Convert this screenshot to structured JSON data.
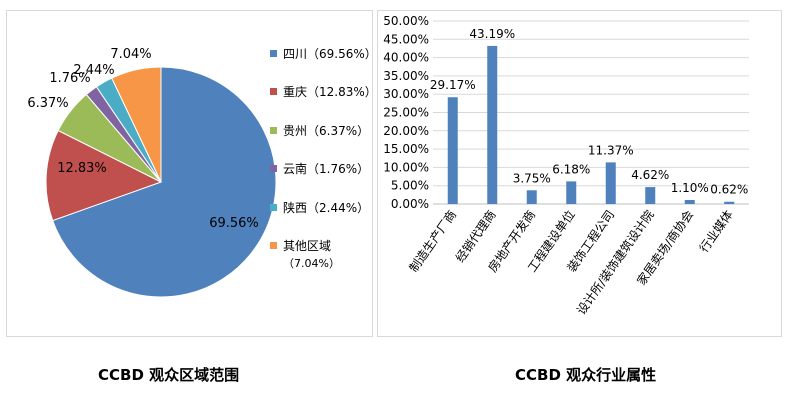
{
  "captions": {
    "left": "CCBD 观众区域范围",
    "right": "CCBD 观众行业属性"
  },
  "chart_data": [
    {
      "type": "pie",
      "title": "",
      "slices": [
        {
          "name": "四川",
          "value": 69.56,
          "label": "69.56%",
          "legend": "四川（69.56%）",
          "color": "#4f81bd"
        },
        {
          "name": "重庆",
          "value": 12.83,
          "label": "12.83%",
          "legend": "重庆（12.83%）",
          "color": "#c0504d"
        },
        {
          "name": "贵州",
          "value": 6.37,
          "label": "6.37%",
          "legend": "贵州（6.37%）",
          "color": "#9bbb59"
        },
        {
          "name": "云南",
          "value": 1.76,
          "label": "1.76%",
          "legend": "云南（1.76%）",
          "color": "#8064a2"
        },
        {
          "name": "陕西",
          "value": 2.44,
          "label": "2.44%",
          "legend": "陕西（2.44%）",
          "color": "#4bacc6"
        },
        {
          "name": "其他区域",
          "value": 7.04,
          "label": "7.04%",
          "legend": "其他区域",
          "legend2": "（7.04%）",
          "color": "#f79646"
        }
      ],
      "legend_position": "right",
      "start_angle_deg": 0,
      "direction": "clockwise"
    },
    {
      "type": "bar",
      "title": "",
      "categories": [
        "制造生产厂商",
        "经销代理商",
        "房地产开发商",
        "工程建设单位",
        "装饰工程公司",
        "设计所/装饰建筑设计院",
        "家居卖场/商协会",
        "行业媒体"
      ],
      "values": [
        29.17,
        43.19,
        3.75,
        6.18,
        11.37,
        4.62,
        1.1,
        0.62
      ],
      "value_labels": [
        "29.17%",
        "43.19%",
        "3.75%",
        "6.18%",
        "11.37%",
        "4.62%",
        "1.10%",
        "0.62%"
      ],
      "yticks": [
        "0.00%",
        "5.00%",
        "10.00%",
        "15.00%",
        "20.00%",
        "25.00%",
        "30.00%",
        "35.00%",
        "40.00%",
        "45.00%",
        "50.00%"
      ],
      "ylim": [
        0,
        50
      ],
      "ytick_step": 5,
      "grid": true,
      "color": "#4f81bd",
      "xlabel": "",
      "ylabel": ""
    }
  ]
}
